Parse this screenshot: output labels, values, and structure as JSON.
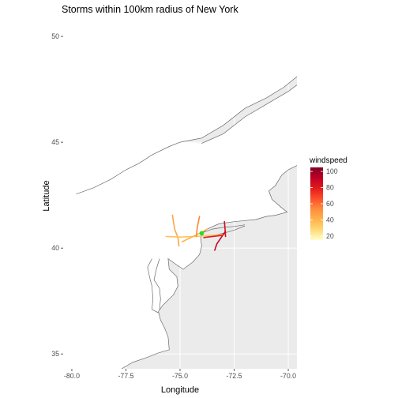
{
  "title": "Storms within 100km radius of New York",
  "xlabel": "Longitude",
  "ylabel": "Latitude",
  "x_ticks": [
    {
      "value": -80.0,
      "label": "-80.0"
    },
    {
      "value": -77.5,
      "label": "-77.5"
    },
    {
      "value": -75.0,
      "label": "-75.0"
    },
    {
      "value": -72.5,
      "label": "-72.5"
    },
    {
      "value": -70.0,
      "label": "-70.0"
    }
  ],
  "y_ticks": [
    {
      "value": 35,
      "label": "35"
    },
    {
      "value": 40,
      "label": "40"
    },
    {
      "value": 45,
      "label": "45"
    },
    {
      "value": 50,
      "label": "50"
    }
  ],
  "xlim": [
    -80.4,
    -69.6
  ],
  "ylim": [
    34.3,
    50.6
  ],
  "colors": {
    "land": "#ffffff",
    "ocean": "#ebebeb",
    "coast": "#6b6b6b",
    "grid": "#ffffff",
    "marker": "#22dd22"
  },
  "legend": {
    "title": "windspeed",
    "labels": [
      {
        "value": 20,
        "label": "20"
      },
      {
        "value": 40,
        "label": "40"
      },
      {
        "value": 60,
        "label": "60"
      },
      {
        "value": 80,
        "label": "80"
      },
      {
        "value": 100,
        "label": "100"
      }
    ],
    "range": [
      15,
      105
    ],
    "gradient": [
      "#ffffcc",
      "#fed976",
      "#feb24c",
      "#fd8d3c",
      "#fc4e2a",
      "#e31a1c",
      "#bd0026",
      "#800026"
    ]
  },
  "chart_data": {
    "type": "map",
    "title": "Storms within 100km radius of New York",
    "xlabel": "Longitude",
    "ylabel": "Latitude",
    "xlim": [
      -80.4,
      -69.6
    ],
    "ylim": [
      34.3,
      50.6
    ],
    "color_scale": "windspeed",
    "tracks": [
      {
        "windspeed": 45,
        "points": [
          [
            -75.35,
            41.55
          ],
          [
            -75.25,
            40.9
          ],
          [
            -75.1,
            40.5
          ],
          [
            -75.05,
            40.1
          ]
        ]
      },
      {
        "windspeed": 35,
        "points": [
          [
            -75.65,
            40.55
          ],
          [
            -75.0,
            40.52
          ],
          [
            -74.3,
            40.55
          ],
          [
            -73.6,
            40.6
          ],
          [
            -72.9,
            40.65
          ]
        ]
      },
      {
        "windspeed": 40,
        "points": [
          [
            -74.9,
            40.3
          ],
          [
            -74.6,
            40.45
          ],
          [
            -74.3,
            40.6
          ],
          [
            -74.0,
            40.75
          ],
          [
            -73.75,
            40.9
          ]
        ]
      },
      {
        "windspeed": 55,
        "points": [
          [
            -74.1,
            41.5
          ],
          [
            -74.2,
            41.0
          ],
          [
            -74.25,
            40.55
          ]
        ]
      },
      {
        "windspeed": 85,
        "points": [
          [
            -72.95,
            41.25
          ],
          [
            -72.92,
            40.9
          ],
          [
            -72.9,
            40.55
          ]
        ]
      },
      {
        "windspeed": 90,
        "points": [
          [
            -73.4,
            39.9
          ],
          [
            -73.3,
            40.2
          ],
          [
            -73.1,
            40.5
          ],
          [
            -72.9,
            40.8
          ]
        ]
      },
      {
        "windspeed": 80,
        "points": [
          [
            -73.9,
            40.5
          ],
          [
            -73.5,
            40.55
          ],
          [
            -73.05,
            40.6
          ]
        ]
      }
    ],
    "points": [
      {
        "name": "New York",
        "lon": -74.0,
        "lat": 40.7
      }
    ]
  },
  "coastline": {
    "st_lawrence_north": [
      [
        -75.0,
        45.0
      ],
      [
        -74.0,
        45.2
      ],
      [
        -73.0,
        45.8
      ],
      [
        -72.0,
        46.6
      ],
      [
        -71.0,
        47.1
      ],
      [
        -70.2,
        47.6
      ],
      [
        -69.6,
        48.1
      ]
    ],
    "st_lawrence_south": [
      [
        -74.0,
        44.95
      ],
      [
        -73.0,
        45.4
      ],
      [
        -72.0,
        46.2
      ],
      [
        -71.0,
        46.8
      ],
      [
        -70.0,
        47.4
      ],
      [
        -69.6,
        47.7
      ]
    ],
    "great_lakes_north": [
      [
        -79.8,
        42.55
      ],
      [
        -79.0,
        42.85
      ],
      [
        -78.2,
        43.25
      ],
      [
        -77.5,
        43.7
      ],
      [
        -76.9,
        44.0
      ],
      [
        -76.3,
        44.4
      ],
      [
        -75.5,
        44.8
      ],
      [
        -75.0,
        45.0
      ]
    ],
    "atlantic_coast": [
      [
        -69.6,
        43.9
      ],
      [
        -70.0,
        43.7
      ],
      [
        -70.3,
        43.45
      ],
      [
        -70.6,
        42.95
      ],
      [
        -70.9,
        42.7
      ],
      [
        -70.75,
        42.3
      ],
      [
        -70.3,
        41.9
      ],
      [
        -70.05,
        41.7
      ],
      [
        -70.6,
        41.55
      ],
      [
        -71.0,
        41.5
      ],
      [
        -71.5,
        41.35
      ],
      [
        -72.0,
        41.3
      ],
      [
        -72.5,
        41.25
      ],
      [
        -73.2,
        41.15
      ],
      [
        -73.75,
        40.9
      ],
      [
        -73.95,
        40.72
      ],
      [
        -74.05,
        40.5
      ],
      [
        -74.0,
        40.1
      ],
      [
        -74.1,
        39.7
      ],
      [
        -74.4,
        39.35
      ],
      [
        -74.85,
        39.0
      ],
      [
        -75.15,
        39.2
      ],
      [
        -75.55,
        39.5
      ],
      [
        -75.5,
        39.0
      ],
      [
        -75.15,
        38.65
      ],
      [
        -75.1,
        38.2
      ],
      [
        -75.3,
        37.8
      ],
      [
        -75.8,
        37.3
      ],
      [
        -76.0,
        37.0
      ],
      [
        -75.9,
        36.6
      ],
      [
        -75.7,
        36.2
      ],
      [
        -75.55,
        35.8
      ],
      [
        -75.5,
        35.2
      ],
      [
        -76.0,
        35.05
      ],
      [
        -76.5,
        34.85
      ],
      [
        -77.2,
        34.6
      ],
      [
        -77.7,
        34.3
      ]
    ],
    "long_island_north": [
      [
        -74.0,
        40.72
      ],
      [
        -73.5,
        40.9
      ],
      [
        -73.0,
        40.98
      ],
      [
        -72.5,
        41.02
      ],
      [
        -72.0,
        41.1
      ]
    ],
    "long_island_south": [
      [
        -74.0,
        40.58
      ],
      [
        -73.5,
        40.6
      ],
      [
        -73.0,
        40.7
      ],
      [
        -72.5,
        40.85
      ],
      [
        -72.0,
        41.05
      ]
    ],
    "chesapeake_west": [
      [
        -76.3,
        39.5
      ],
      [
        -76.5,
        39.1
      ],
      [
        -76.4,
        38.6
      ],
      [
        -76.3,
        38.2
      ],
      [
        -76.25,
        37.6
      ],
      [
        -76.3,
        37.1
      ],
      [
        -76.0,
        36.95
      ]
    ],
    "chesapeake_east": [
      [
        -75.95,
        39.5
      ],
      [
        -76.1,
        39.0
      ],
      [
        -76.2,
        38.5
      ],
      [
        -75.95,
        38.1
      ],
      [
        -75.9,
        37.6
      ],
      [
        -75.95,
        37.1
      ]
    ]
  }
}
